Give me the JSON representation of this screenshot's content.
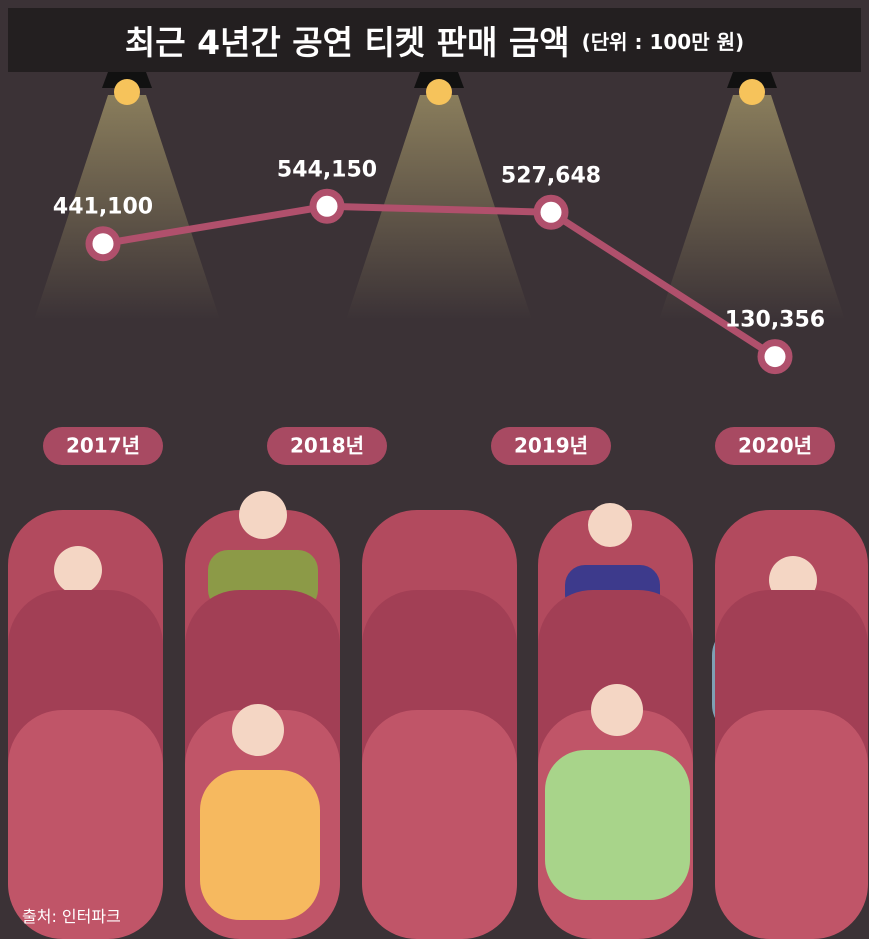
{
  "chart_data": {
    "type": "line",
    "title": "최근 4년간 공연 티켓 판매 금액",
    "subtitle": "(단위 : 100만 원)",
    "categories": [
      "2017년",
      "2018년",
      "2019년",
      "2020년"
    ],
    "values": [
      441100,
      544150,
      527648,
      130356
    ],
    "value_labels": [
      "441,100",
      "544,150",
      "527,648",
      "130,356"
    ],
    "color": "#b0506c",
    "ylim": [
      0,
      600000
    ],
    "source": "출처: 인터파크"
  }
}
